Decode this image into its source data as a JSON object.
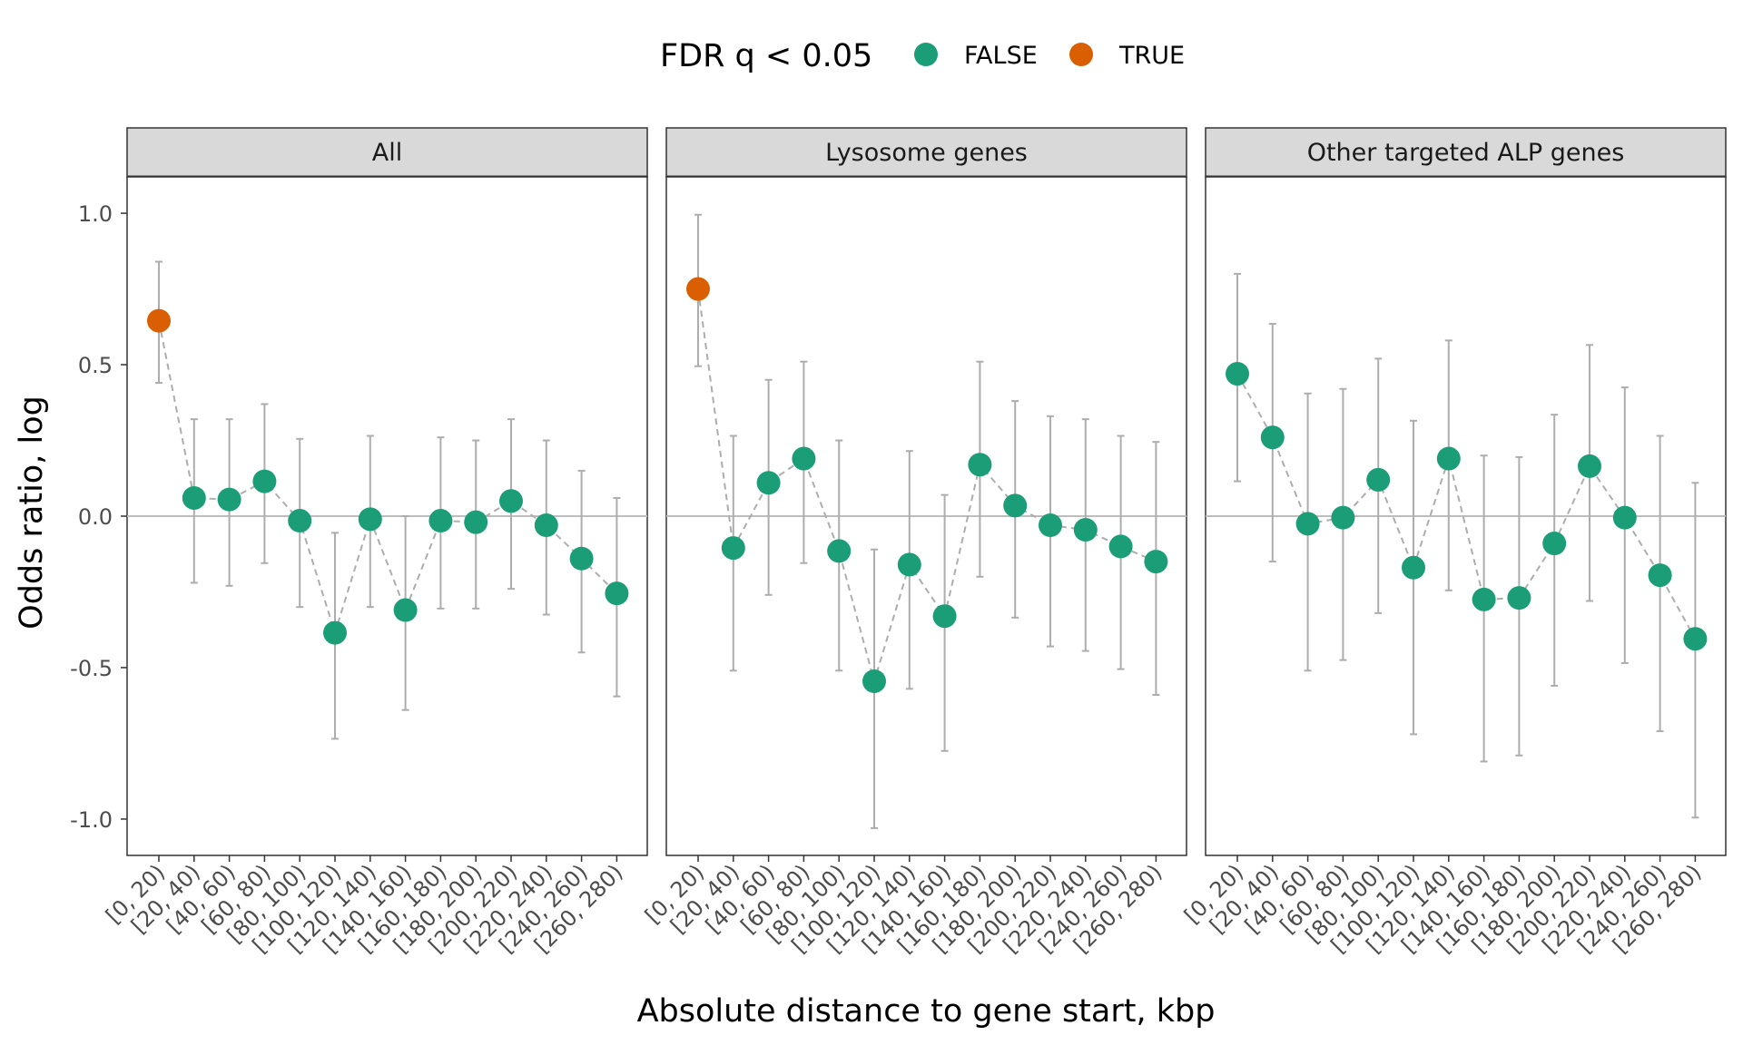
{
  "chart_data": {
    "type": "scatter",
    "xlabel": "Absolute distance to gene start, kbp",
    "ylabel": "Odds ratio, log",
    "ylim": [
      -1.12,
      1.12
    ],
    "yticks": [
      1.0,
      0.5,
      0.0,
      -0.5,
      -1.0
    ],
    "ytick_labels": [
      "1.0",
      "0.5",
      "0.0",
      "-0.5",
      "-1.0"
    ],
    "grid": false,
    "reference_line": 0,
    "legend": {
      "title": "FDR q < 0.05",
      "placement": "top",
      "entries": [
        {
          "label": "FALSE",
          "color": "#1b9e77"
        },
        {
          "label": "TRUE",
          "color": "#d95f02"
        }
      ]
    },
    "categories": [
      "[0, 20)",
      "[20, 40)",
      "[40, 60)",
      "[60, 80)",
      "[80, 100)",
      "[100, 120)",
      "[120, 140)",
      "[140, 160)",
      "[160, 180)",
      "[180, 200)",
      "[200, 220)",
      "[220, 240)",
      "[240, 260)",
      "[260, 280)"
    ],
    "panels": [
      {
        "title": "All",
        "values": [
          0.645,
          0.06,
          0.055,
          0.115,
          -0.015,
          -0.385,
          -0.01,
          -0.31,
          -0.015,
          -0.02,
          0.05,
          -0.03,
          -0.14,
          -0.255
        ],
        "lower": [
          0.44,
          -0.22,
          -0.23,
          -0.155,
          -0.3,
          -0.735,
          -0.3,
          -0.64,
          -0.305,
          -0.305,
          -0.24,
          -0.325,
          -0.45,
          -0.595
        ],
        "upper": [
          0.84,
          0.32,
          0.32,
          0.37,
          0.255,
          -0.055,
          0.265,
          0.0,
          0.26,
          0.25,
          0.32,
          0.25,
          0.15,
          0.06
        ],
        "significant": [
          true,
          false,
          false,
          false,
          false,
          false,
          false,
          false,
          false,
          false,
          false,
          false,
          false,
          false
        ]
      },
      {
        "title": "Lysosome genes",
        "values": [
          0.75,
          -0.105,
          0.11,
          0.19,
          -0.115,
          -0.545,
          -0.16,
          -0.33,
          0.17,
          0.035,
          -0.03,
          -0.045,
          -0.1,
          -0.15
        ],
        "lower": [
          0.495,
          -0.51,
          -0.26,
          -0.155,
          -0.51,
          -1.03,
          -0.57,
          -0.775,
          -0.2,
          -0.335,
          -0.43,
          -0.445,
          -0.505,
          -0.59
        ],
        "upper": [
          0.995,
          0.265,
          0.45,
          0.51,
          0.25,
          -0.11,
          0.215,
          0.07,
          0.51,
          0.38,
          0.33,
          0.32,
          0.265,
          0.245
        ],
        "significant": [
          true,
          false,
          false,
          false,
          false,
          false,
          false,
          false,
          false,
          false,
          false,
          false,
          false,
          false
        ]
      },
      {
        "title": "Other targeted ALP genes",
        "values": [
          0.47,
          0.26,
          -0.025,
          -0.005,
          0.12,
          -0.17,
          0.19,
          -0.275,
          -0.27,
          -0.09,
          0.165,
          -0.005,
          -0.195,
          -0.405
        ],
        "lower": [
          0.115,
          -0.15,
          -0.51,
          -0.475,
          -0.32,
          -0.72,
          -0.245,
          -0.81,
          -0.79,
          -0.56,
          -0.28,
          -0.485,
          -0.71,
          -0.995
        ],
        "upper": [
          0.8,
          0.635,
          0.405,
          0.42,
          0.52,
          0.315,
          0.58,
          0.2,
          0.195,
          0.335,
          0.565,
          0.425,
          0.265,
          0.11
        ],
        "significant": [
          false,
          false,
          false,
          false,
          false,
          false,
          false,
          false,
          false,
          false,
          false,
          false,
          false,
          false
        ]
      }
    ]
  }
}
